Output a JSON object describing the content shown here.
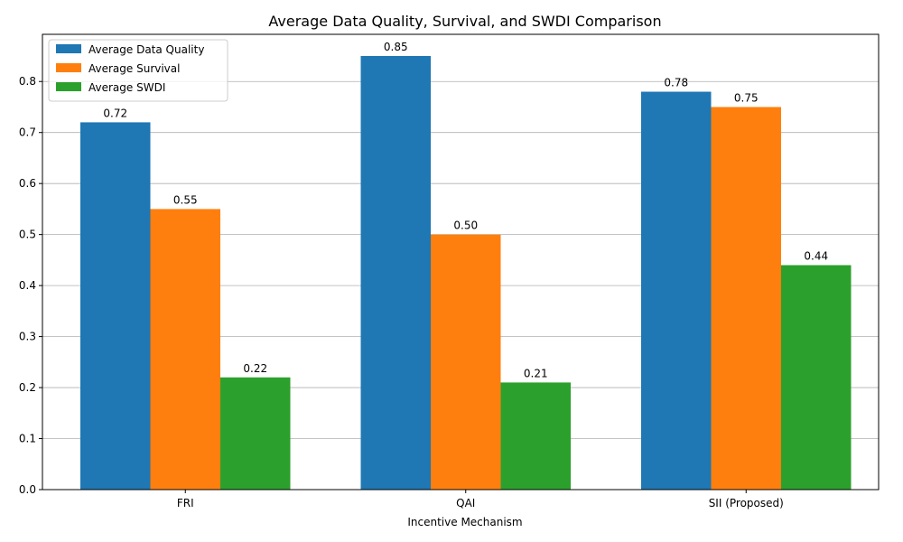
{
  "chart_data": {
    "type": "bar",
    "title": "Average Data Quality, Survival, and SWDI Comparison",
    "xlabel": "Incentive Mechanism",
    "ylabel": "",
    "categories": [
      "FRI",
      "QAI",
      "SII (Proposed)"
    ],
    "series": [
      {
        "name": "Average Data Quality",
        "values": [
          0.72,
          0.85,
          0.78
        ],
        "color": "#1f77b4"
      },
      {
        "name": "Average Survival",
        "values": [
          0.55,
          0.5,
          0.75
        ],
        "color": "#ff7f0e"
      },
      {
        "name": "Average SWDI",
        "values": [
          0.22,
          0.21,
          0.44
        ],
        "color": "#2ca02c"
      }
    ],
    "ylim": [
      0,
      0.8925
    ],
    "yticks": [
      0.0,
      0.1,
      0.2,
      0.3,
      0.4,
      0.5,
      0.6,
      0.7,
      0.8
    ],
    "ytick_labels": [
      "0.0",
      "0.1",
      "0.2",
      "0.3",
      "0.4",
      "0.5",
      "0.6",
      "0.7",
      "0.8"
    ],
    "data_label_format": "2dp",
    "grid": "y-major",
    "legend_position": "top-left"
  }
}
